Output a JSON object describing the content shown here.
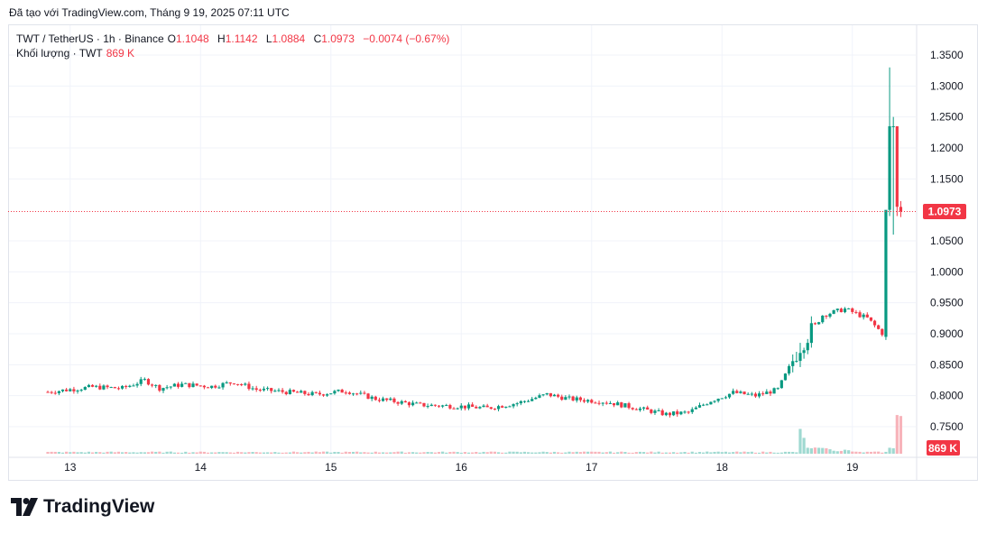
{
  "header": {
    "created_text": "Đã tạo với TradingView.com, Tháng 9 19, 2025 07:11 UTC"
  },
  "legend": {
    "symbol": "TWT / TetherUS · 1h · Binance",
    "o_label": "O",
    "o_value": "1.1048",
    "h_label": "H",
    "h_value": "1.1142",
    "l_label": "L",
    "l_value": "1.0884",
    "c_label": "C",
    "c_value": "1.0973",
    "change": "−0.0074 (−0.67%)",
    "volume_label": "Khối lượng · TWT",
    "volume_value": "869 K"
  },
  "brand": {
    "name": "TradingView"
  },
  "colors": {
    "up": "#089981",
    "down": "#f23645",
    "grid": "#f0f3fa",
    "up_vol": "#9fd9d1",
    "down_vol": "#f7b3ba"
  },
  "chart_data": {
    "type": "candlestick",
    "title": "TWT / TetherUS · 1h · Binance",
    "y_ticks": [
      "1.3500",
      "1.3000",
      "1.2500",
      "1.2000",
      "1.1500",
      "1.0500",
      "1.0000",
      "0.9500",
      "0.9000",
      "0.8500",
      "0.8000",
      "0.7500"
    ],
    "y_tick_values": [
      1.35,
      1.3,
      1.25,
      1.2,
      1.15,
      1.05,
      1.0,
      0.95,
      0.9,
      0.85,
      0.8,
      0.75
    ],
    "ylim": [
      0.7057,
      1.3943
    ],
    "x_ticks": [
      "13",
      "14",
      "15",
      "16",
      "17",
      "18",
      "19"
    ],
    "x_tick_hours": [
      6,
      41,
      76,
      111,
      146,
      181,
      216
    ],
    "last_price": 1.0973,
    "last_price_label": "1.0973",
    "volume_label": "869 K",
    "anchors": [
      [
        0,
        0.806
      ],
      [
        12,
        0.814
      ],
      [
        20,
        0.812
      ],
      [
        26,
        0.825
      ],
      [
        30,
        0.812
      ],
      [
        36,
        0.818
      ],
      [
        44,
        0.815
      ],
      [
        50,
        0.822
      ],
      [
        56,
        0.81
      ],
      [
        66,
        0.805
      ],
      [
        72,
        0.802
      ],
      [
        80,
        0.808
      ],
      [
        88,
        0.795
      ],
      [
        100,
        0.785
      ],
      [
        110,
        0.783
      ],
      [
        118,
        0.78
      ],
      [
        126,
        0.788
      ],
      [
        134,
        0.802
      ],
      [
        140,
        0.795
      ],
      [
        150,
        0.79
      ],
      [
        158,
        0.78
      ],
      [
        166,
        0.77
      ],
      [
        172,
        0.773
      ],
      [
        178,
        0.792
      ],
      [
        184,
        0.805
      ],
      [
        190,
        0.8
      ],
      [
        196,
        0.81
      ],
      [
        202,
        0.88
      ],
      [
        208,
        0.93
      ],
      [
        214,
        0.94
      ],
      [
        220,
        0.925
      ],
      [
        225,
        0.895
      ]
    ],
    "tail": [
      {
        "o": 0.895,
        "h": 0.93,
        "l": 0.89,
        "c": 1.1
      },
      {
        "o": 1.1,
        "h": 1.33,
        "l": 1.09,
        "c": 1.235
      },
      {
        "o": 1.235,
        "h": 1.25,
        "l": 1.06,
        "c": 1.235
      },
      {
        "o": 1.235,
        "h": 1.235,
        "l": 1.09,
        "c": 1.105
      },
      {
        "o": 1.1048,
        "h": 1.1142,
        "l": 1.0884,
        "c": 1.0973
      }
    ],
    "vol_max": 1000,
    "volume_spikes": [
      {
        "i": 202,
        "v": 250
      },
      {
        "i": 203,
        "v": 160
      },
      {
        "i": 204,
        "v": 60
      },
      {
        "i": 205,
        "v": 55
      },
      {
        "i": 206,
        "v": 62
      },
      {
        "i": 207,
        "v": 60
      },
      {
        "i": 208,
        "v": 58
      },
      {
        "i": 209,
        "v": 55
      },
      {
        "i": 210,
        "v": 45
      },
      {
        "i": 211,
        "v": 30
      },
      {
        "i": 212,
        "v": 25
      },
      {
        "i": 213,
        "v": 28
      },
      {
        "i": 214,
        "v": 40
      },
      {
        "i": 215,
        "v": 35
      },
      {
        "i": 216,
        "v": 22
      },
      {
        "i": 226,
        "v": 60
      },
      {
        "i": 227,
        "v": 55
      },
      {
        "i": 228,
        "v": 390
      },
      {
        "i": 229,
        "v": 380
      },
      {
        "i": 230,
        "v": 230
      },
      {
        "i": 231,
        "v": 120
      },
      {
        "i": 232,
        "v": 40
      }
    ]
  }
}
